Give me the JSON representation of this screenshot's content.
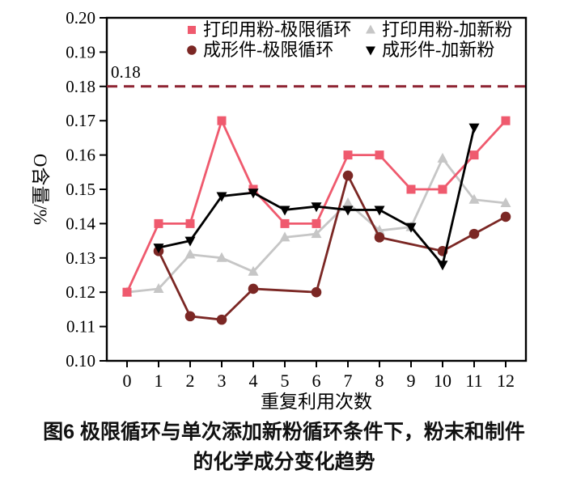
{
  "figure": {
    "caption_line1": "图6  极限循环与单次添加新粉循环条件下，粉末和制件",
    "caption_line2": "的化学成分变化趋势"
  },
  "chart_data": {
    "type": "line",
    "title": "",
    "xlabel": "重复利用次数",
    "ylabel": "O含量/%",
    "xlim": [
      -0.64,
      12.64
    ],
    "ylim": [
      0.1,
      0.2
    ],
    "xticks": [
      0,
      1,
      2,
      3,
      4,
      5,
      6,
      7,
      8,
      9,
      10,
      11,
      12
    ],
    "yticks": [
      0.1,
      0.11,
      0.12,
      0.13,
      0.14,
      0.15,
      0.16,
      0.17,
      0.18,
      0.19,
      0.2
    ],
    "grid": false,
    "legend_position": "top-inside-two-columns",
    "threshold": {
      "value": 0.18,
      "label": "0.18",
      "color": "#8e2432",
      "style": "dashed"
    },
    "series": [
      {
        "name": "打印用粉-极限循环",
        "marker": "square",
        "color": "#ef5a6e",
        "x": [
          0,
          1,
          2,
          3,
          4,
          5,
          6,
          7,
          8,
          9,
          10,
          11,
          12
        ],
        "y": [
          0.12,
          0.14,
          0.14,
          0.17,
          0.15,
          0.14,
          0.14,
          0.16,
          0.16,
          0.15,
          0.15,
          0.16,
          0.17
        ]
      },
      {
        "name": "打印用粉-加新粉",
        "marker": "triangle-up",
        "color": "#c6c6c6",
        "x": [
          0,
          1,
          2,
          3,
          4,
          5,
          6,
          7,
          8,
          9,
          10,
          11,
          12
        ],
        "y": [
          0.12,
          0.121,
          0.131,
          0.13,
          0.126,
          0.136,
          0.137,
          0.146,
          0.138,
          0.139,
          0.159,
          0.147,
          0.146
        ]
      },
      {
        "name": "成形件-极限循环",
        "marker": "circle",
        "color": "#7b2724",
        "x": [
          1,
          2,
          3,
          4,
          6,
          7,
          8,
          10,
          11,
          12
        ],
        "y": [
          0.132,
          0.113,
          0.112,
          0.121,
          0.12,
          0.154,
          0.136,
          0.132,
          0.137,
          0.142
        ]
      },
      {
        "name": "成形件-加新粉",
        "marker": "triangle-down",
        "color": "#000000",
        "x": [
          1,
          2,
          3,
          4,
          5,
          6,
          7,
          8,
          9,
          10,
          11
        ],
        "y": [
          0.133,
          0.135,
          0.148,
          0.149,
          0.144,
          0.145,
          0.144,
          0.144,
          0.139,
          0.128,
          0.168
        ]
      }
    ]
  }
}
